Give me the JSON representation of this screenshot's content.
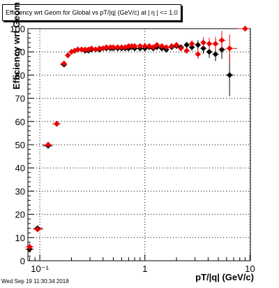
{
  "chart_data": {
    "type": "scatter",
    "title": "Efficiency wrt Geom for Global vs pT/|q| (GeV/c) at |   η | <= 1.0",
    "xlabel": "pT/|q| (GeV/c)",
    "ylabel": "Efficiency wrt Geom (%)",
    "x_scale": "log",
    "xlim": [
      0.077,
      10.1
    ],
    "ylim": [
      0,
      100
    ],
    "x_ticks": [
      "10⁻¹",
      "1",
      "10"
    ],
    "y_ticks": [
      "0",
      "10",
      "20",
      "30",
      "40",
      "50",
      "60",
      "70",
      "80",
      "90",
      "100"
    ],
    "grid": true,
    "series": [
      {
        "color": "#000000",
        "marker": "diamond",
        "x": [
          0.08,
          0.095,
          0.12,
          0.145,
          0.17,
          0.185,
          0.2,
          0.215,
          0.23,
          0.25,
          0.27,
          0.29,
          0.31,
          0.34,
          0.37,
          0.4,
          0.43,
          0.47,
          0.5,
          0.55,
          0.6,
          0.65,
          0.7,
          0.75,
          0.8,
          0.9,
          1.0,
          1.1,
          1.2,
          1.3,
          1.45,
          1.6,
          1.8,
          2.0,
          2.2,
          2.5,
          2.8,
          3.2,
          3.6,
          4.1,
          4.7,
          5.4,
          6.4
        ],
        "y": [
          5,
          14,
          49.5,
          59,
          84.5,
          88.5,
          90,
          90.5,
          91,
          91,
          90.5,
          90.5,
          91,
          91,
          91,
          91.5,
          91.5,
          91.5,
          91.5,
          91.5,
          91.5,
          91.5,
          91.5,
          92,
          91.5,
          91.5,
          91.5,
          92,
          91.5,
          92,
          91.5,
          91,
          92,
          92.5,
          92,
          93,
          92,
          93,
          91.5,
          90,
          89,
          91,
          80
        ],
        "y_err": [
          1.5,
          1.2,
          0.8,
          0.8,
          0.8,
          0.6,
          0.5,
          0.5,
          0.5,
          0.5,
          0.5,
          0.5,
          0.5,
          0.5,
          0.5,
          0.5,
          0.5,
          0.5,
          0.5,
          0.5,
          0.5,
          0.5,
          0.5,
          0.5,
          0.5,
          0.6,
          0.6,
          0.6,
          0.7,
          0.7,
          0.8,
          0.8,
          1.0,
          1.0,
          1.1,
          1.3,
          1.5,
          2.0,
          2.3,
          2.6,
          3.0,
          4.0,
          9.0
        ]
      },
      {
        "color": "#ee0000",
        "marker": "diamond",
        "x": [
          0.08,
          0.095,
          0.12,
          0.145,
          0.17,
          0.185,
          0.2,
          0.215,
          0.23,
          0.25,
          0.27,
          0.29,
          0.31,
          0.34,
          0.37,
          0.4,
          0.43,
          0.47,
          0.5,
          0.55,
          0.6,
          0.65,
          0.7,
          0.75,
          0.8,
          0.9,
          1.0,
          1.1,
          1.2,
          1.3,
          1.45,
          1.6,
          1.8,
          2.0,
          2.2,
          2.5,
          2.8,
          3.2,
          3.6,
          4.1,
          4.7,
          5.4,
          6.4,
          9.0
        ],
        "y": [
          6,
          13.5,
          50,
          59,
          85,
          88.5,
          90,
          90.5,
          91,
          91,
          91,
          91,
          91.5,
          91,
          91.5,
          91.5,
          92,
          92,
          92,
          92,
          92,
          92,
          92.5,
          92.5,
          92.5,
          92.5,
          92.5,
          92.5,
          92,
          93,
          92.5,
          92,
          92.5,
          93,
          91.5,
          90.5,
          93.5,
          89,
          94,
          93.5,
          93.5,
          95,
          91.5,
          100
        ],
        "y_err": [
          1.5,
          1.2,
          0.8,
          0.8,
          0.8,
          0.6,
          0.5,
          0.5,
          0.5,
          0.5,
          0.5,
          0.5,
          0.5,
          0.5,
          0.5,
          0.5,
          0.5,
          0.5,
          0.5,
          0.5,
          0.5,
          0.5,
          0.5,
          0.5,
          0.5,
          0.6,
          0.6,
          0.6,
          0.7,
          0.7,
          0.8,
          0.8,
          1.0,
          1.0,
          1.1,
          1.3,
          1.5,
          2.0,
          2.3,
          2.6,
          3.0,
          4.0,
          6.0,
          0
        ]
      }
    ]
  },
  "footer": {
    "datestamp": "Wed Sep 19 11:30:34 2018"
  }
}
